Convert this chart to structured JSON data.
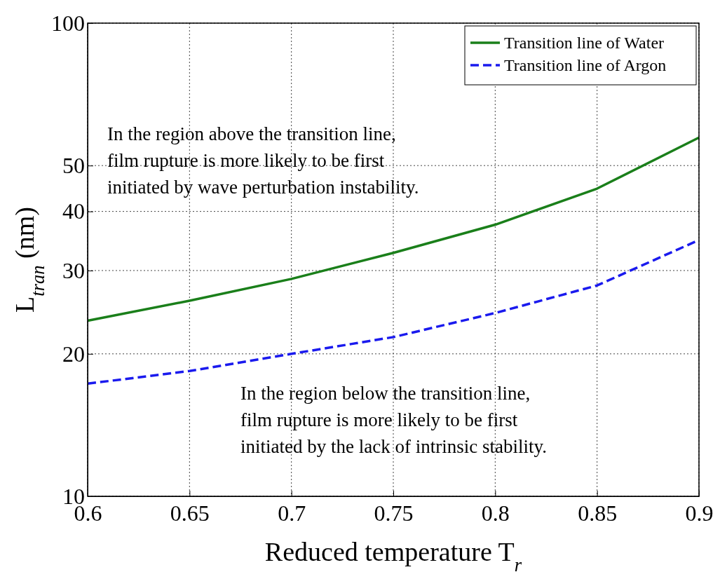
{
  "chart_data": {
    "type": "line",
    "xlabel": "Reduced temperature  T$_{r}$",
    "ylabel": "L$_{tran}$ (nm)",
    "x": [
      0.6,
      0.65,
      0.7,
      0.75,
      0.8,
      0.85,
      0.9
    ],
    "series": [
      {
        "name": "Transition line of Water",
        "color": "#1a7f1a",
        "line_style": "solid",
        "values": [
          23.5,
          25.9,
          28.8,
          32.7,
          37.5,
          44.7,
          57.3
        ]
      },
      {
        "name": "Transition line of Argon",
        "color": "#1a1aee",
        "line_style": "dashed",
        "values": [
          17.3,
          18.4,
          20.0,
          21.7,
          24.4,
          27.9,
          34.8
        ]
      }
    ],
    "xlim": [
      0.6,
      0.9
    ],
    "xticks": [
      0.6,
      0.65,
      0.7,
      0.75,
      0.8,
      0.85,
      0.9
    ],
    "ylim": [
      10,
      100
    ],
    "yticks": [
      10,
      20,
      30,
      40,
      50,
      100
    ],
    "log": "y",
    "grid": true,
    "legend": "top right",
    "marker": "none",
    "annotations": [
      "In the region above the transition line,\nfilm rupture is more likely to be first\ninitiated by wave perturbation instability.",
      "In the region below the transition line,\nfilm rupture is more likely to be first\ninitiated by the lack of intrinsic stability."
    ]
  }
}
